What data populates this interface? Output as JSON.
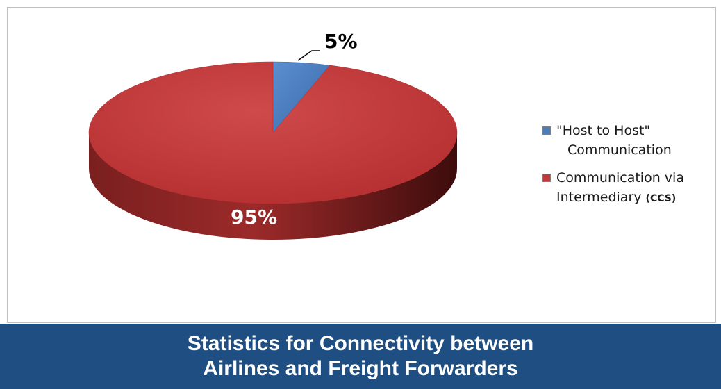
{
  "chart_data": {
    "type": "pie",
    "title": "Statistics for Connectivity between Airlines and Freight Forwarders",
    "title_lines": [
      "Statistics for Connectivity between",
      "Airlines and Freight Forwarders"
    ],
    "legend_position": "right",
    "slices": [
      {
        "name": "\"Host to Host\" Communication",
        "name_lines": [
          "\"Host to Host\"",
          "Communication"
        ],
        "value": 5,
        "label": "5%",
        "color": "#4a7ebb"
      },
      {
        "name": "Communication via Intermediary (CCS)",
        "name_lines": [
          "Communication via",
          "Intermediary",
          "(CCS)"
        ],
        "value": 95,
        "label": "95%",
        "color": "#c0393b"
      }
    ]
  }
}
